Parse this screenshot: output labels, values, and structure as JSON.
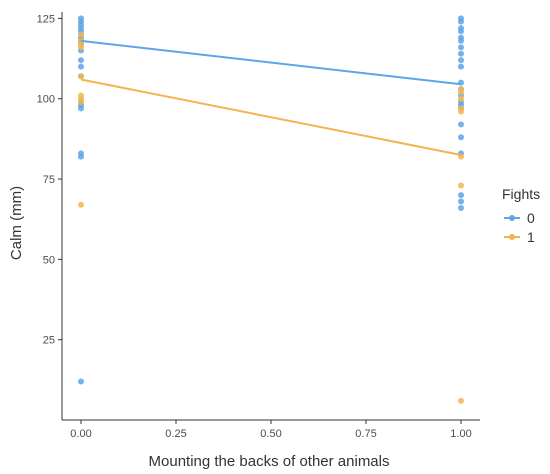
{
  "chart_data": {
    "type": "scatter",
    "xlabel": "Mounting the backs of other animals",
    "ylabel": "Calm (mm)",
    "xlim": [
      -0.05,
      1.05
    ],
    "ylim": [
      0,
      127
    ],
    "x_ticks": [
      0,
      0.25,
      0.5,
      0.75,
      1
    ],
    "x_tick_labels": [
      "0.00",
      "0.25",
      "0.50",
      "0.75",
      "1.00"
    ],
    "y_ticks": [
      25,
      50,
      75,
      100,
      125
    ],
    "y_tick_labels": [
      "25",
      "50",
      "75",
      "100",
      "125"
    ],
    "grid": false,
    "legend": {
      "title": "Fights",
      "placement": "right",
      "entries": [
        "0",
        "1"
      ]
    },
    "series": [
      {
        "name": "0",
        "color": "#5DA5E8",
        "points": [
          {
            "x": 0,
            "y": 125
          },
          {
            "x": 0,
            "y": 124
          },
          {
            "x": 0,
            "y": 123
          },
          {
            "x": 0,
            "y": 122
          },
          {
            "x": 0,
            "y": 121
          },
          {
            "x": 0,
            "y": 120
          },
          {
            "x": 0,
            "y": 119
          },
          {
            "x": 0,
            "y": 118
          },
          {
            "x": 0,
            "y": 117
          },
          {
            "x": 0,
            "y": 115
          },
          {
            "x": 0,
            "y": 112
          },
          {
            "x": 0,
            "y": 110
          },
          {
            "x": 0,
            "y": 107
          },
          {
            "x": 0,
            "y": 99
          },
          {
            "x": 0,
            "y": 98
          },
          {
            "x": 0,
            "y": 97
          },
          {
            "x": 0,
            "y": 83
          },
          {
            "x": 0,
            "y": 82
          },
          {
            "x": 0,
            "y": 12
          },
          {
            "x": 1,
            "y": 125
          },
          {
            "x": 1,
            "y": 124
          },
          {
            "x": 1,
            "y": 122
          },
          {
            "x": 1,
            "y": 121
          },
          {
            "x": 1,
            "y": 119
          },
          {
            "x": 1,
            "y": 118
          },
          {
            "x": 1,
            "y": 116
          },
          {
            "x": 1,
            "y": 114
          },
          {
            "x": 1,
            "y": 112
          },
          {
            "x": 1,
            "y": 110
          },
          {
            "x": 1,
            "y": 105
          },
          {
            "x": 1,
            "y": 103
          },
          {
            "x": 1,
            "y": 101
          },
          {
            "x": 1,
            "y": 99
          },
          {
            "x": 1,
            "y": 98
          },
          {
            "x": 1,
            "y": 97
          },
          {
            "x": 1,
            "y": 92
          },
          {
            "x": 1,
            "y": 88
          },
          {
            "x": 1,
            "y": 83
          },
          {
            "x": 1,
            "y": 70
          },
          {
            "x": 1,
            "y": 68
          },
          {
            "x": 1,
            "y": 66
          }
        ],
        "fit": {
          "x0": 0,
          "y0": 118,
          "x1": 1,
          "y1": 104.5
        }
      },
      {
        "name": "1",
        "color": "#F2B54D",
        "points": [
          {
            "x": 0,
            "y": 120
          },
          {
            "x": 0,
            "y": 118
          },
          {
            "x": 0,
            "y": 117
          },
          {
            "x": 0,
            "y": 116
          },
          {
            "x": 0,
            "y": 107
          },
          {
            "x": 0,
            "y": 101
          },
          {
            "x": 0,
            "y": 100
          },
          {
            "x": 0,
            "y": 99
          },
          {
            "x": 0,
            "y": 67
          },
          {
            "x": 1,
            "y": 103
          },
          {
            "x": 1,
            "y": 102
          },
          {
            "x": 1,
            "y": 100
          },
          {
            "x": 1,
            "y": 97
          },
          {
            "x": 1,
            "y": 96
          },
          {
            "x": 1,
            "y": 82
          },
          {
            "x": 1,
            "y": 73
          },
          {
            "x": 1,
            "y": 6
          }
        ],
        "fit": {
          "x0": 0,
          "y0": 106,
          "x1": 1,
          "y1": 82.5
        }
      }
    ]
  }
}
